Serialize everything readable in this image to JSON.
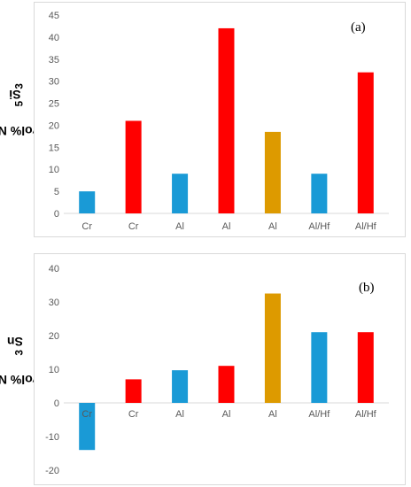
{
  "chart_data": [
    {
      "type": "bar",
      "panel_label": "(a)",
      "ylabel_prefix": "vol% Nb",
      "ylabel_sub1": "5",
      "ylabel_mid": "Si",
      "ylabel_sub2": "3",
      "categories": [
        "Cr",
        "Cr",
        "Al",
        "Al",
        "Al",
        "Al/Hf",
        "Al/Hf"
      ],
      "values": [
        5,
        21,
        9,
        42,
        18.5,
        9,
        32
      ],
      "colors": [
        "#1a9ad6",
        "#ff0000",
        "#1a9ad6",
        "#ff0000",
        "#dd9a00",
        "#1a9ad6",
        "#ff0000"
      ],
      "ylim": [
        0,
        45
      ],
      "yticks": [
        0,
        5,
        10,
        15,
        20,
        25,
        30,
        35,
        40,
        45
      ],
      "grid": false
    },
    {
      "type": "bar",
      "panel_label": "(b)",
      "ylabel_prefix": "vol% Nb",
      "ylabel_sub1": "3",
      "ylabel_mid": "Sn",
      "ylabel_sub2": "",
      "categories": [
        "Cr",
        "Cr",
        "Al",
        "Al",
        "Al",
        "Al/Hf",
        "Al/Hf"
      ],
      "values": [
        -14,
        7,
        9.7,
        11,
        32.5,
        21,
        21
      ],
      "colors": [
        "#1a9ad6",
        "#ff0000",
        "#1a9ad6",
        "#ff0000",
        "#dd9a00",
        "#1a9ad6",
        "#ff0000"
      ],
      "ylim": [
        -20,
        40
      ],
      "yticks": [
        -20,
        -10,
        0,
        10,
        20,
        30,
        40
      ],
      "grid": false
    }
  ]
}
